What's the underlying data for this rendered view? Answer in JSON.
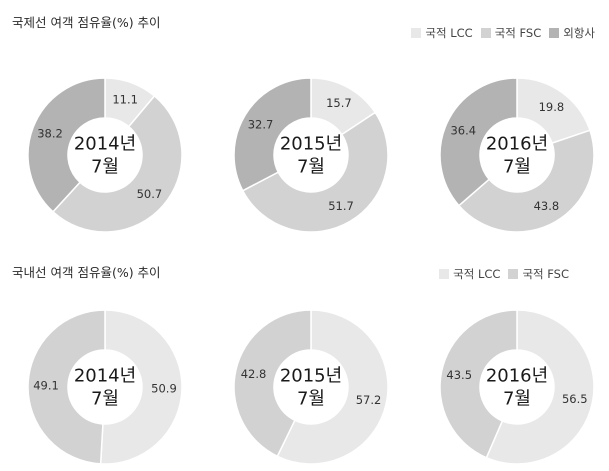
{
  "sections": {
    "international": {
      "title": "국제선 여객 점유율(%) 추이",
      "legend": [
        {
          "label": "국적 LCC",
          "color": "#e8e8e8"
        },
        {
          "label": "국적 FSC",
          "color": "#d2d2d2"
        },
        {
          "label": "외항사",
          "color": "#b3b3b3"
        }
      ]
    },
    "domestic": {
      "title": "국내선 여객 점유율(%) 추이",
      "legend": [
        {
          "label": "국적 LCC",
          "color": "#e8e8e8"
        },
        {
          "label": "국적 FSC",
          "color": "#d2d2d2"
        }
      ]
    }
  },
  "chart_data": [
    {
      "type": "pie",
      "title": "2014년 7월",
      "center_lines": [
        "2014년",
        "7월"
      ],
      "categories": [
        "국적 LCC",
        "국적 FSC",
        "외항사"
      ],
      "values": [
        11.1,
        50.7,
        38.2
      ],
      "colors": [
        "#e8e8e8",
        "#d2d2d2",
        "#b3b3b3"
      ]
    },
    {
      "type": "pie",
      "title": "2015년 7월",
      "center_lines": [
        "2015년",
        "7월"
      ],
      "categories": [
        "국적 LCC",
        "국적 FSC",
        "외항사"
      ],
      "values": [
        15.7,
        51.7,
        32.7
      ],
      "colors": [
        "#e8e8e8",
        "#d2d2d2",
        "#b3b3b3"
      ]
    },
    {
      "type": "pie",
      "title": "2016년 7월",
      "center_lines": [
        "2016년",
        "7월"
      ],
      "categories": [
        "국적 LCC",
        "국적 FSC",
        "외항사"
      ],
      "values": [
        19.8,
        43.8,
        36.4
      ],
      "colors": [
        "#e8e8e8",
        "#d2d2d2",
        "#b3b3b3"
      ]
    },
    {
      "type": "pie",
      "title": "2014년 7월",
      "center_lines": [
        "2014년",
        "7월"
      ],
      "categories": [
        "국적 LCC",
        "국적 FSC"
      ],
      "values": [
        50.9,
        49.1
      ],
      "colors": [
        "#e8e8e8",
        "#d2d2d2"
      ]
    },
    {
      "type": "pie",
      "title": "2015년 7월",
      "center_lines": [
        "2015년",
        "7월"
      ],
      "categories": [
        "국적 LCC",
        "국적 FSC"
      ],
      "values": [
        57.2,
        42.8
      ],
      "colors": [
        "#e8e8e8",
        "#d2d2d2"
      ]
    },
    {
      "type": "pie",
      "title": "2016년 7월",
      "center_lines": [
        "2016년",
        "7월"
      ],
      "categories": [
        "국적 LCC",
        "국적 FSC"
      ],
      "values": [
        56.5,
        43.5
      ],
      "colors": [
        "#e8e8e8",
        "#d2d2d2"
      ]
    }
  ]
}
